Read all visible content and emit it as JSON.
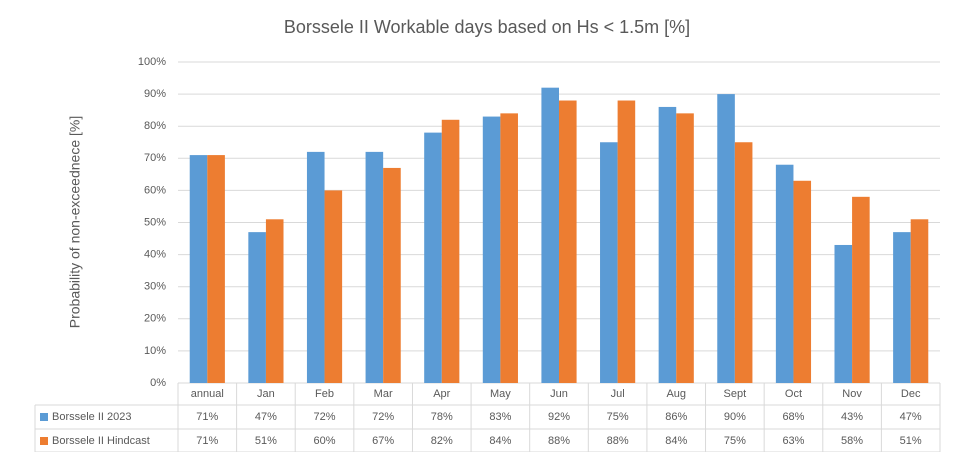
{
  "chart_data": {
    "type": "bar",
    "title": "Borssele II Workable days based on Hs < 1.5m [%]",
    "y_label": "Probability of non-exceednece [%]",
    "categories": [
      "annual",
      "Jan",
      "Feb",
      "Mar",
      "Apr",
      "May",
      "Jun",
      "Jul",
      "Aug",
      "Sept",
      "Oct",
      "Nov",
      "Dec"
    ],
    "series": [
      {
        "name": "Borssele II 2023",
        "color": "#5b9bd5",
        "values": [
          71,
          47,
          72,
          72,
          78,
          83,
          92,
          75,
          86,
          90,
          68,
          43,
          47
        ],
        "value_labels": [
          "71%",
          "47%",
          "72%",
          "72%",
          "78%",
          "83%",
          "92%",
          "75%",
          "86%",
          "90%",
          "68%",
          "43%",
          "47%"
        ]
      },
      {
        "name": "Borssele II Hindcast",
        "color": "#ed7d31",
        "values": [
          71,
          51,
          60,
          67,
          82,
          84,
          88,
          88,
          84,
          75,
          63,
          58,
          51
        ],
        "value_labels": [
          "71%",
          "51%",
          "60%",
          "67%",
          "82%",
          "84%",
          "88%",
          "88%",
          "84%",
          "75%",
          "63%",
          "58%",
          "51%"
        ]
      }
    ],
    "ylim": [
      0,
      100
    ],
    "yticks": [
      {
        "value": 0,
        "label": "0%"
      },
      {
        "value": 10,
        "label": "10%"
      },
      {
        "value": 20,
        "label": "20%"
      },
      {
        "value": 30,
        "label": "30%"
      },
      {
        "value": 40,
        "label": "40%"
      },
      {
        "value": 50,
        "label": "50%"
      },
      {
        "value": 60,
        "label": "60%"
      },
      {
        "value": 70,
        "label": "70%"
      },
      {
        "value": 80,
        "label": "80%"
      },
      {
        "value": 90,
        "label": "90%"
      },
      {
        "value": 100,
        "label": "100%"
      }
    ],
    "grid": true
  }
}
